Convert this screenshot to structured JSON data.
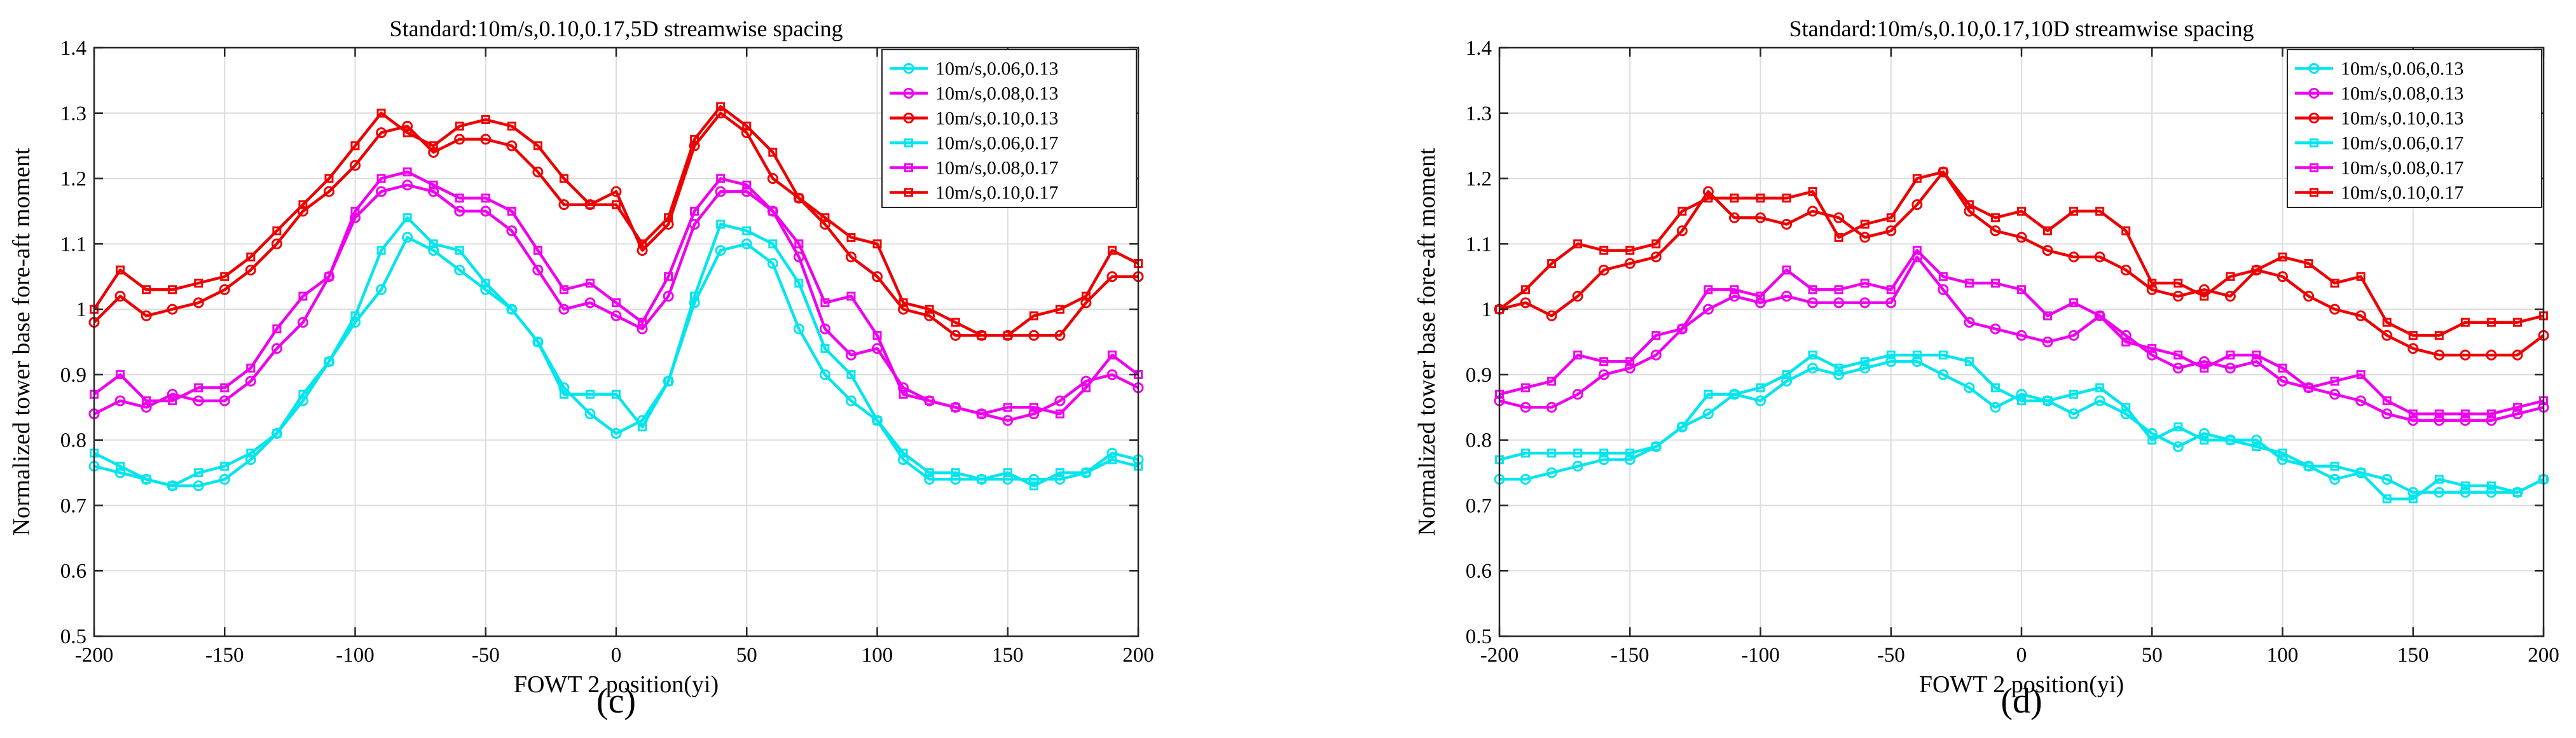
{
  "chart_data": [
    {
      "type": "line",
      "panel_label": "(c)",
      "title": "Standard:10m/s,0.10,0.17,5D streamwise spacing",
      "xlabel": "FOWT 2 position(yi)",
      "ylabel": "Normalized tower base fore-aft moment",
      "xlim": [
        -200,
        200
      ],
      "ylim": [
        0.5,
        1.4
      ],
      "xticks": [
        -200,
        -150,
        -100,
        -50,
        0,
        50,
        100,
        150,
        200
      ],
      "xtick_labels": [
        "-200",
        "-150",
        "-100",
        "-50",
        "0",
        "50",
        "100",
        "150",
        "200"
      ],
      "yticks": [
        0.5,
        0.6,
        0.7,
        0.8,
        0.9,
        1.0,
        1.1,
        1.2,
        1.3,
        1.4
      ],
      "ytick_labels": [
        "0.5",
        "0.6",
        "0.7",
        "0.8",
        "0.9",
        "1",
        "1.1",
        "1.2",
        "1.3",
        "1.4"
      ],
      "grid": true,
      "legend_position": "top-right",
      "x": [
        -200,
        -190,
        -180,
        -170,
        -160,
        -150,
        -140,
        -130,
        -120,
        -110,
        -100,
        -90,
        -80,
        -70,
        -60,
        -50,
        -40,
        -30,
        -20,
        -10,
        0,
        10,
        20,
        30,
        40,
        50,
        60,
        70,
        80,
        90,
        100,
        110,
        120,
        130,
        140,
        150,
        160,
        170,
        180,
        190,
        200
      ],
      "series": [
        {
          "name": "10m/s,0.06,0.13",
          "color": "#00e5ee",
          "marker": "circle",
          "values": [
            0.76,
            0.75,
            0.74,
            0.73,
            0.73,
            0.74,
            0.77,
            0.81,
            0.86,
            0.92,
            0.98,
            1.03,
            1.11,
            1.09,
            1.06,
            1.03,
            1.0,
            0.95,
            0.88,
            0.84,
            0.81,
            0.83,
            0.89,
            1.01,
            1.09,
            1.1,
            1.07,
            0.97,
            0.9,
            0.86,
            0.83,
            0.77,
            0.74,
            0.74,
            0.74,
            0.74,
            0.74,
            0.74,
            0.75,
            0.78,
            0.77
          ]
        },
        {
          "name": "10m/s,0.08,0.13",
          "color": "#ee00ee",
          "marker": "circle",
          "values": [
            0.84,
            0.86,
            0.85,
            0.87,
            0.86,
            0.86,
            0.89,
            0.94,
            0.98,
            1.05,
            1.14,
            1.18,
            1.19,
            1.18,
            1.15,
            1.15,
            1.12,
            1.06,
            1.0,
            1.01,
            0.99,
            0.97,
            1.02,
            1.13,
            1.18,
            1.18,
            1.15,
            1.08,
            0.97,
            0.93,
            0.94,
            0.88,
            0.86,
            0.85,
            0.84,
            0.83,
            0.84,
            0.86,
            0.89,
            0.9,
            0.88
          ]
        },
        {
          "name": "10m/s,0.10,0.13",
          "color": "#ee0000",
          "marker": "circle",
          "values": [
            0.98,
            1.02,
            0.99,
            1.0,
            1.01,
            1.03,
            1.06,
            1.1,
            1.15,
            1.18,
            1.22,
            1.27,
            1.28,
            1.24,
            1.26,
            1.26,
            1.25,
            1.21,
            1.16,
            1.16,
            1.18,
            1.09,
            1.13,
            1.25,
            1.3,
            1.27,
            1.2,
            1.17,
            1.13,
            1.08,
            1.05,
            1.0,
            0.99,
            0.96,
            0.96,
            0.96,
            0.96,
            0.96,
            1.01,
            1.05,
            1.05
          ]
        },
        {
          "name": "10m/s,0.06,0.17",
          "color": "#00e5ee",
          "marker": "square",
          "values": [
            0.78,
            0.76,
            0.74,
            0.73,
            0.75,
            0.76,
            0.78,
            0.81,
            0.87,
            0.92,
            0.99,
            1.09,
            1.14,
            1.1,
            1.09,
            1.04,
            1.0,
            0.95,
            0.87,
            0.87,
            0.87,
            0.82,
            0.89,
            1.02,
            1.13,
            1.12,
            1.1,
            1.04,
            0.94,
            0.9,
            0.83,
            0.78,
            0.75,
            0.75,
            0.74,
            0.75,
            0.73,
            0.75,
            0.75,
            0.77,
            0.76
          ]
        },
        {
          "name": "10m/s,0.08,0.17",
          "color": "#ee00ee",
          "marker": "square",
          "values": [
            0.87,
            0.9,
            0.86,
            0.86,
            0.88,
            0.88,
            0.91,
            0.97,
            1.02,
            1.05,
            1.15,
            1.2,
            1.21,
            1.19,
            1.17,
            1.17,
            1.15,
            1.09,
            1.03,
            1.04,
            1.01,
            0.98,
            1.05,
            1.15,
            1.2,
            1.19,
            1.15,
            1.1,
            1.01,
            1.02,
            0.96,
            0.87,
            0.86,
            0.85,
            0.84,
            0.85,
            0.85,
            0.84,
            0.88,
            0.93,
            0.9
          ]
        },
        {
          "name": "10m/s,0.10,0.17",
          "color": "#ee0000",
          "marker": "square",
          "values": [
            1.0,
            1.06,
            1.03,
            1.03,
            1.04,
            1.05,
            1.08,
            1.12,
            1.16,
            1.2,
            1.25,
            1.3,
            1.27,
            1.25,
            1.28,
            1.29,
            1.28,
            1.25,
            1.2,
            1.16,
            1.16,
            1.1,
            1.14,
            1.26,
            1.31,
            1.28,
            1.24,
            1.17,
            1.14,
            1.11,
            1.1,
            1.01,
            1.0,
            0.98,
            0.96,
            0.96,
            0.99,
            1.0,
            1.02,
            1.09,
            1.07
          ]
        }
      ]
    },
    {
      "type": "line",
      "panel_label": "(d)",
      "title": "Standard:10m/s,0.10,0.17,10D streamwise spacing",
      "xlabel": "FOWT 2 position(yi)",
      "ylabel": "Normalized tower base fore-aft moment",
      "xlim": [
        -200,
        200
      ],
      "ylim": [
        0.5,
        1.4
      ],
      "xticks": [
        -200,
        -150,
        -100,
        -50,
        0,
        50,
        100,
        150,
        200
      ],
      "xtick_labels": [
        "-200",
        "-150",
        "-100",
        "-50",
        "0",
        "50",
        "100",
        "150",
        "200"
      ],
      "yticks": [
        0.5,
        0.6,
        0.7,
        0.8,
        0.9,
        1.0,
        1.1,
        1.2,
        1.3,
        1.4
      ],
      "ytick_labels": [
        "0.5",
        "0.6",
        "0.7",
        "0.8",
        "0.9",
        "1",
        "1.1",
        "1.2",
        "1.3",
        "1.4"
      ],
      "grid": true,
      "legend_position": "top-right",
      "x": [
        -200,
        -190,
        -180,
        -170,
        -160,
        -150,
        -140,
        -130,
        -120,
        -110,
        -100,
        -90,
        -80,
        -70,
        -60,
        -50,
        -40,
        -30,
        -20,
        -10,
        0,
        10,
        20,
        30,
        40,
        50,
        60,
        70,
        80,
        90,
        100,
        110,
        120,
        130,
        140,
        150,
        160,
        170,
        180,
        190,
        200
      ],
      "series": [
        {
          "name": "10m/s,0.06,0.13",
          "color": "#00e5ee",
          "marker": "circle",
          "values": [
            0.74,
            0.74,
            0.75,
            0.76,
            0.77,
            0.77,
            0.79,
            0.82,
            0.84,
            0.87,
            0.86,
            0.89,
            0.91,
            0.9,
            0.91,
            0.92,
            0.92,
            0.9,
            0.88,
            0.85,
            0.87,
            0.86,
            0.84,
            0.86,
            0.84,
            0.81,
            0.79,
            0.81,
            0.8,
            0.8,
            0.77,
            0.76,
            0.74,
            0.75,
            0.74,
            0.72,
            0.72,
            0.72,
            0.72,
            0.72,
            0.74
          ]
        },
        {
          "name": "10m/s,0.08,0.13",
          "color": "#ee00ee",
          "marker": "circle",
          "values": [
            0.86,
            0.85,
            0.85,
            0.87,
            0.9,
            0.91,
            0.93,
            0.97,
            1.0,
            1.02,
            1.01,
            1.02,
            1.01,
            1.01,
            1.01,
            1.01,
            1.08,
            1.03,
            0.98,
            0.97,
            0.96,
            0.95,
            0.96,
            0.99,
            0.96,
            0.93,
            0.91,
            0.92,
            0.91,
            0.92,
            0.89,
            0.88,
            0.87,
            0.86,
            0.84,
            0.83,
            0.83,
            0.83,
            0.83,
            0.84,
            0.85
          ]
        },
        {
          "name": "10m/s,0.10,0.13",
          "color": "#ee0000",
          "marker": "circle",
          "values": [
            1.0,
            1.01,
            0.99,
            1.02,
            1.06,
            1.07,
            1.08,
            1.12,
            1.18,
            1.14,
            1.14,
            1.13,
            1.15,
            1.14,
            1.11,
            1.12,
            1.16,
            1.21,
            1.15,
            1.12,
            1.11,
            1.09,
            1.08,
            1.08,
            1.06,
            1.03,
            1.02,
            1.03,
            1.02,
            1.06,
            1.05,
            1.02,
            1.0,
            0.99,
            0.96,
            0.94,
            0.93,
            0.93,
            0.93,
            0.93,
            0.96
          ]
        },
        {
          "name": "10m/s,0.06,0.17",
          "color": "#00e5ee",
          "marker": "square",
          "values": [
            0.77,
            0.78,
            0.78,
            0.78,
            0.78,
            0.78,
            0.79,
            0.82,
            0.87,
            0.87,
            0.88,
            0.9,
            0.93,
            0.91,
            0.92,
            0.93,
            0.93,
            0.93,
            0.92,
            0.88,
            0.86,
            0.86,
            0.87,
            0.88,
            0.85,
            0.8,
            0.82,
            0.8,
            0.8,
            0.79,
            0.78,
            0.76,
            0.76,
            0.75,
            0.71,
            0.71,
            0.74,
            0.73,
            0.73,
            0.72,
            0.74
          ]
        },
        {
          "name": "10m/s,0.08,0.17",
          "color": "#ee00ee",
          "marker": "square",
          "values": [
            0.87,
            0.88,
            0.89,
            0.93,
            0.92,
            0.92,
            0.96,
            0.97,
            1.03,
            1.03,
            1.02,
            1.06,
            1.03,
            1.03,
            1.04,
            1.03,
            1.09,
            1.05,
            1.04,
            1.04,
            1.03,
            0.99,
            1.01,
            0.99,
            0.95,
            0.94,
            0.93,
            0.91,
            0.93,
            0.93,
            0.91,
            0.88,
            0.89,
            0.9,
            0.86,
            0.84,
            0.84,
            0.84,
            0.84,
            0.85,
            0.86
          ]
        },
        {
          "name": "10m/s,0.10,0.17",
          "color": "#ee0000",
          "marker": "square",
          "values": [
            1.0,
            1.03,
            1.07,
            1.1,
            1.09,
            1.09,
            1.1,
            1.15,
            1.17,
            1.17,
            1.17,
            1.17,
            1.18,
            1.11,
            1.13,
            1.14,
            1.2,
            1.21,
            1.16,
            1.14,
            1.15,
            1.12,
            1.15,
            1.15,
            1.12,
            1.04,
            1.04,
            1.02,
            1.05,
            1.06,
            1.08,
            1.07,
            1.04,
            1.05,
            0.98,
            0.96,
            0.96,
            0.98,
            0.98,
            0.98,
            0.99
          ]
        }
      ]
    }
  ]
}
